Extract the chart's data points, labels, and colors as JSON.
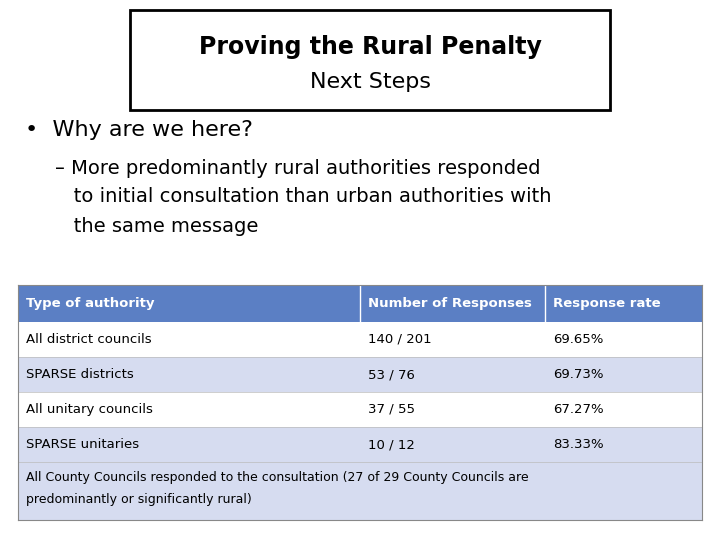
{
  "title_line1": "Proving the Rural Penalty",
  "title_line2": "Next Steps",
  "bullet": "Why are we here?",
  "sub_bullet_line1": "– More predominantly rural authorities responded",
  "sub_bullet_line2": "   to initial consultation than urban authorities with",
  "sub_bullet_line3": "   the same message",
  "table_header": [
    "Type of authority",
    "Number of Responses",
    "Response rate"
  ],
  "table_rows": [
    [
      "All district councils",
      "140 / 201",
      "69.65%"
    ],
    [
      "SPARSE districts",
      "53 / 76",
      "69.73%"
    ],
    [
      "All unitary councils",
      "37 / 55",
      "67.27%"
    ],
    [
      "SPARSE unitaries",
      "10 / 12",
      "83.33%"
    ]
  ],
  "table_footer_line1": "All County Councils responded to the consultation (27 of 29 County Councils are",
  "table_footer_line2": "predominantly or significantly rural)",
  "header_bg": "#5B7FC4",
  "row_bg_light": "#FFFFFF",
  "row_bg_dark": "#D6DCF0",
  "footer_bg": "#D6DCF0",
  "header_text_color": "#FFFFFF",
  "body_text_color": "#000000",
  "background_color": "#FFFFFF",
  "title_border_color": "#000000",
  "table_border_color": "#AAAAAA"
}
